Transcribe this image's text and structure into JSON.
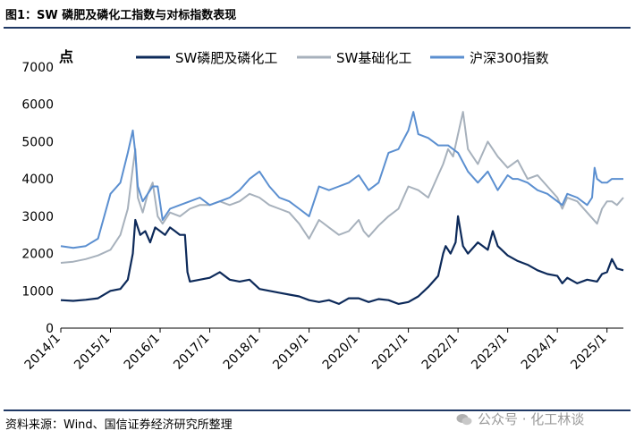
{
  "header": {
    "title": "图1：SW 磷肥及磷化工指数与对标指数表现"
  },
  "footer": {
    "source": "资料来源：Wind、国信证券经济研究所整理",
    "watermark": "公众号 · 化工林谈"
  },
  "chart_data": {
    "type": "line",
    "ylabel": "点",
    "ylim": [
      0,
      7000
    ],
    "yticks": [
      0,
      1000,
      2000,
      3000,
      4000,
      5000,
      6000,
      7000
    ],
    "xticks": [
      "2014/1",
      "2015/1",
      "2016/1",
      "2017/1",
      "2018/1",
      "2019/1",
      "2020/1",
      "2021/1",
      "2022/1",
      "2023/1",
      "2024/1",
      "2025/1"
    ],
    "xlim": [
      2014.0,
      2025.33
    ],
    "legend": {
      "position": "top"
    },
    "grid": false,
    "series": [
      {
        "name": "SW磷肥及磷化工",
        "color": "#0d2a5a",
        "x": [
          2014.0,
          2014.25,
          2014.5,
          2014.75,
          2015.0,
          2015.2,
          2015.35,
          2015.45,
          2015.5,
          2015.6,
          2015.7,
          2015.8,
          2015.9,
          2016.0,
          2016.1,
          2016.2,
          2016.3,
          2016.4,
          2016.5,
          2016.55,
          2016.6,
          2016.8,
          2017.0,
          2017.2,
          2017.4,
          2017.6,
          2017.8,
          2018.0,
          2018.2,
          2018.4,
          2018.6,
          2018.8,
          2019.0,
          2019.2,
          2019.4,
          2019.6,
          2019.8,
          2020.0,
          2020.2,
          2020.4,
          2020.6,
          2020.8,
          2021.0,
          2021.2,
          2021.4,
          2021.6,
          2021.7,
          2021.75,
          2021.85,
          2021.95,
          2022.0,
          2022.1,
          2022.2,
          2022.4,
          2022.6,
          2022.7,
          2022.8,
          2023.0,
          2023.2,
          2023.4,
          2023.6,
          2023.8,
          2024.0,
          2024.1,
          2024.2,
          2024.4,
          2024.6,
          2024.8,
          2024.9,
          2025.0,
          2025.1,
          2025.2,
          2025.33
        ],
        "y": [
          750,
          730,
          760,
          800,
          1000,
          1050,
          1300,
          2000,
          2900,
          2500,
          2600,
          2300,
          2700,
          2600,
          2500,
          2700,
          2600,
          2500,
          2500,
          1500,
          1250,
          1300,
          1350,
          1500,
          1300,
          1250,
          1300,
          1050,
          1000,
          950,
          900,
          850,
          750,
          700,
          750,
          650,
          800,
          800,
          700,
          780,
          750,
          650,
          700,
          850,
          1100,
          1400,
          2000,
          2200,
          2000,
          2300,
          3000,
          2200,
          2000,
          2300,
          2100,
          2600,
          2200,
          1950,
          1800,
          1700,
          1550,
          1450,
          1400,
          1200,
          1350,
          1200,
          1300,
          1250,
          1450,
          1500,
          1850,
          1600,
          1550
        ]
      },
      {
        "name": "SW基础化工",
        "color": "#a7b1bc",
        "x": [
          2014.0,
          2014.25,
          2014.5,
          2014.75,
          2015.0,
          2015.2,
          2015.35,
          2015.45,
          2015.5,
          2015.55,
          2015.65,
          2015.75,
          2015.85,
          2015.95,
          2016.05,
          2016.2,
          2016.4,
          2016.6,
          2016.8,
          2017.0,
          2017.2,
          2017.4,
          2017.6,
          2017.8,
          2018.0,
          2018.2,
          2018.4,
          2018.6,
          2018.8,
          2019.0,
          2019.2,
          2019.4,
          2019.6,
          2019.8,
          2020.0,
          2020.1,
          2020.2,
          2020.4,
          2020.6,
          2020.8,
          2021.0,
          2021.2,
          2021.4,
          2021.6,
          2021.7,
          2021.8,
          2021.9,
          2022.0,
          2022.1,
          2022.2,
          2022.4,
          2022.6,
          2022.8,
          2023.0,
          2023.2,
          2023.4,
          2023.6,
          2023.8,
          2024.0,
          2024.1,
          2024.2,
          2024.4,
          2024.6,
          2024.8,
          2024.9,
          2025.0,
          2025.1,
          2025.2,
          2025.33
        ],
        "y": [
          1750,
          1780,
          1850,
          1950,
          2100,
          2500,
          3200,
          4300,
          4800,
          3500,
          3100,
          3600,
          3900,
          3000,
          2800,
          3100,
          3000,
          3200,
          3300,
          3300,
          3400,
          3300,
          3400,
          3600,
          3500,
          3300,
          3200,
          3100,
          2800,
          2400,
          2900,
          2700,
          2500,
          2600,
          2900,
          2600,
          2450,
          2750,
          3000,
          3200,
          3800,
          3700,
          3500,
          4100,
          4400,
          4800,
          4600,
          5200,
          5800,
          4800,
          4400,
          5000,
          4600,
          4300,
          4500,
          4000,
          4100,
          3800,
          3500,
          3200,
          3500,
          3400,
          3100,
          2800,
          3200,
          3400,
          3400,
          3300,
          3500
        ]
      },
      {
        "name": "沪深300指数",
        "color": "#5b8fd0",
        "x": [
          2014.0,
          2014.25,
          2014.5,
          2014.75,
          2015.0,
          2015.2,
          2015.35,
          2015.45,
          2015.5,
          2015.55,
          2015.65,
          2015.75,
          2015.85,
          2015.95,
          2016.05,
          2016.2,
          2016.4,
          2016.6,
          2016.8,
          2017.0,
          2017.2,
          2017.4,
          2017.6,
          2017.8,
          2018.0,
          2018.2,
          2018.4,
          2018.6,
          2018.8,
          2019.0,
          2019.2,
          2019.4,
          2019.6,
          2019.8,
          2020.0,
          2020.2,
          2020.4,
          2020.6,
          2020.8,
          2021.0,
          2021.1,
          2021.2,
          2021.4,
          2021.6,
          2021.8,
          2022.0,
          2022.2,
          2022.4,
          2022.6,
          2022.8,
          2023.0,
          2023.1,
          2023.2,
          2023.4,
          2023.6,
          2023.8,
          2024.0,
          2024.1,
          2024.2,
          2024.4,
          2024.6,
          2024.7,
          2024.75,
          2024.8,
          2024.9,
          2025.0,
          2025.1,
          2025.2,
          2025.33
        ],
        "y": [
          2200,
          2150,
          2200,
          2400,
          3600,
          3900,
          4700,
          5300,
          4700,
          3800,
          3400,
          3600,
          3800,
          3800,
          2900,
          3200,
          3300,
          3400,
          3500,
          3300,
          3400,
          3500,
          3700,
          4000,
          4200,
          3800,
          3500,
          3400,
          3200,
          3000,
          3800,
          3700,
          3800,
          3900,
          4100,
          3700,
          3900,
          4700,
          4800,
          5300,
          5800,
          5200,
          5100,
          4900,
          4900,
          4700,
          4200,
          3900,
          4200,
          3700,
          4100,
          4000,
          4000,
          3900,
          3700,
          3600,
          3400,
          3300,
          3600,
          3500,
          3300,
          3500,
          4300,
          4000,
          3900,
          3900,
          4000,
          4000,
          4000
        ]
      }
    ]
  }
}
